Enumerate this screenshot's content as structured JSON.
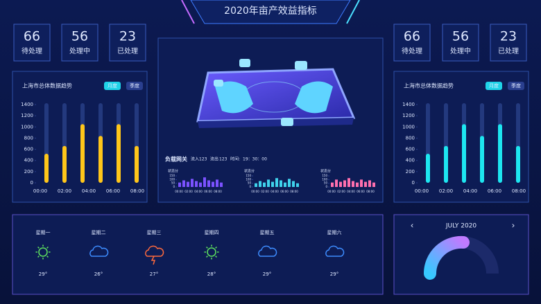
{
  "header": {
    "title": "2020年亩产效益指标"
  },
  "stats_left": [
    {
      "value": 66,
      "label": "待处理",
      "color": "#bcd8ff"
    },
    {
      "value": 56,
      "label": "处理中",
      "color": "#d4ffc8"
    },
    {
      "value": 23,
      "label": "已处理",
      "color": "#ffc0e6"
    }
  ],
  "stats_right": [
    {
      "value": 66,
      "label": "待处理",
      "color": "#bcd8ff"
    },
    {
      "value": 56,
      "label": "处理中",
      "color": "#d4ffc8"
    },
    {
      "value": 23,
      "label": "已处理",
      "color": "#ffc0e6"
    }
  ],
  "trend_left": {
    "title": "上海市总体数据趋势",
    "buttons": [
      "月度",
      "季度"
    ],
    "ylim": [
      0,
      1400
    ],
    "yticks": [
      0,
      200,
      400,
      600,
      800,
      1000,
      1200,
      1400
    ],
    "xlabels": [
      "00:00",
      "02:00",
      "04:00",
      "06:00",
      "08:00"
    ],
    "values": [
      520,
      660,
      1050,
      840,
      1050,
      660
    ],
    "color": "#ffc61a"
  },
  "trend_right": {
    "title": "上海市总体数据趋势",
    "buttons": [
      "月度",
      "季度"
    ],
    "ylim": [
      0,
      1400
    ],
    "yticks": [
      0,
      200,
      400,
      600,
      800,
      1000,
      1200,
      1400
    ],
    "xlabels": [
      "00:00",
      "02:00",
      "04:00",
      "06:00",
      "08:00"
    ],
    "values": [
      520,
      660,
      1050,
      840,
      1050,
      660
    ],
    "color": "#1de6f0"
  },
  "gateway": {
    "title": "负载网关",
    "inflow_label": "流入",
    "inflow": 123,
    "outflow_label": "流出",
    "outflow": 123,
    "time_label": "时间:",
    "time": "19：30：00",
    "charts": [
      {
        "title": "状态分",
        "ylim": [
          0,
          150
        ],
        "yticks": [
          0,
          50,
          100,
          150
        ],
        "xlabels": [
          "00:00",
          "02:00",
          "04:00",
          "06:00",
          "08:00"
        ],
        "values": [
          60,
          90,
          70,
          110,
          80,
          60,
          130,
          90,
          70,
          100,
          60
        ],
        "color": "#7b52ff"
      },
      {
        "title": "状态分",
        "ylim": [
          0,
          150
        ],
        "yticks": [
          0,
          50,
          100,
          150
        ],
        "xlabels": [
          "00:00",
          "02:00",
          "04:00",
          "06:00",
          "08:00"
        ],
        "values": [
          50,
          80,
          60,
          100,
          70,
          120,
          90,
          60,
          110,
          80,
          50
        ],
        "color": "#3fd2ec"
      },
      {
        "title": "状态分",
        "ylim": [
          0,
          150
        ],
        "yticks": [
          0,
          50,
          100,
          150
        ],
        "xlabels": [
          "00:00",
          "02:00",
          "04:00",
          "06:00",
          "08:00"
        ],
        "values": [
          60,
          100,
          70,
          90,
          120,
          80,
          60,
          100,
          70,
          90,
          60
        ],
        "color": "#ff6fae"
      }
    ]
  },
  "weather": {
    "days": [
      {
        "day": "星期一",
        "icon": "sun",
        "temp": "29°"
      },
      {
        "day": "星期二",
        "icon": "cloud",
        "temp": "26°"
      },
      {
        "day": "星期三",
        "icon": "storm",
        "temp": "27°"
      },
      {
        "day": "星期四",
        "icon": "sun",
        "temp": "28°"
      },
      {
        "day": "星期五",
        "icon": "cloud",
        "temp": "29°"
      },
      {
        "day": "星期六",
        "icon": "cloud",
        "temp": "29°"
      }
    ]
  },
  "calendar": {
    "month": "JULY 2020"
  }
}
